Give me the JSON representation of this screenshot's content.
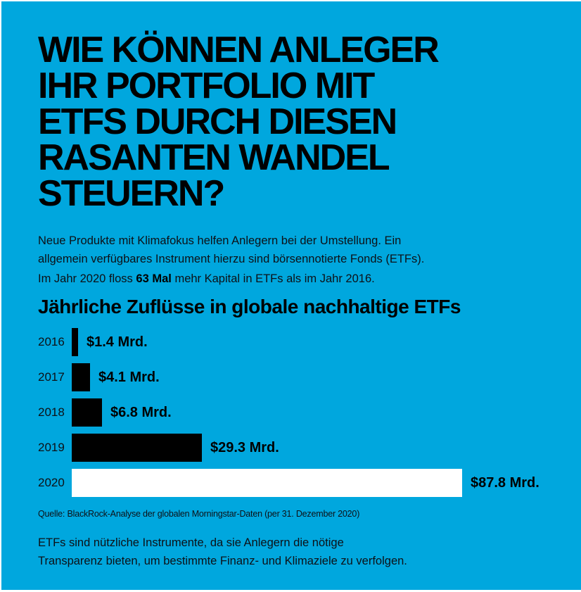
{
  "page": {
    "background_color": "#00A7DE",
    "text_color": "#000000"
  },
  "headline": {
    "lines": [
      "WIE KÖNNEN ANLEGER",
      "IHR PORTFOLIO MIT",
      "ETFS DURCH DIESEN",
      "RASANTEN WANDEL",
      "STEUERN?"
    ]
  },
  "intro": {
    "lines": [
      "Neue Produkte mit Klimafokus helfen Anlegern bei der Umstellung. Ein",
      "allgemein verfügbares Instrument hierzu sind börsennotierte Fonds (ETFs)."
    ]
  },
  "key_fact": {
    "prefix": "Im Jahr 2020 floss ",
    "bold": "63 Mal",
    "suffix": " mehr Kapital in ETFs als im Jahr 2016."
  },
  "chart_data": {
    "type": "bar",
    "orientation": "horizontal",
    "title": "Jährliche Zuflüsse in globale nachhaltige ETFs",
    "categories": [
      "2016",
      "2017",
      "2018",
      "2019",
      "2020"
    ],
    "values": [
      1.4,
      4.1,
      6.8,
      29.3,
      87.8
    ],
    "value_labels": [
      "$1.4 Mrd.",
      "$4.1 Mrd.",
      "$6.8 Mrd.",
      "$29.3 Mrd.",
      "$87.8 Mrd."
    ],
    "xlim": [
      0,
      87.8
    ],
    "grid": false,
    "legend": false,
    "bar_colors": [
      "#000000",
      "#000000",
      "#000000",
      "#000000",
      "#FFFFFF"
    ],
    "highlight_index": 4,
    "source": "Quelle: BlackRock-Analyse der globalen Morningstar-Daten (per 31. Dezember 2020)"
  },
  "closing": {
    "lines": [
      "ETFs sind nützliche Instrumente, da sie Anlegern die nötige",
      "Transparenz bieten, um bestimmte Finanz- und Klimaziele zu verfolgen."
    ]
  }
}
